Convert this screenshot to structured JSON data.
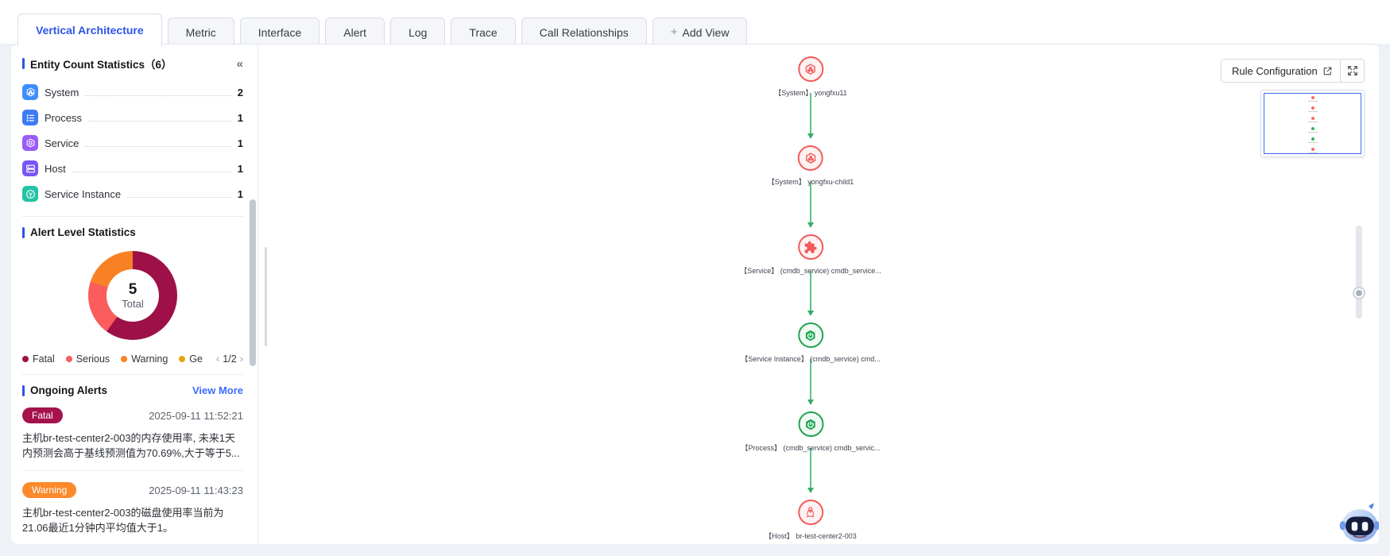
{
  "tabs": {
    "items": [
      {
        "label": "Vertical Architecture",
        "active": true
      },
      {
        "label": "Metric",
        "active": false
      },
      {
        "label": "Interface",
        "active": false
      },
      {
        "label": "Alert",
        "active": false
      },
      {
        "label": "Log",
        "active": false
      },
      {
        "label": "Trace",
        "active": false
      },
      {
        "label": "Call Relationships",
        "active": false
      }
    ],
    "add_view": {
      "plus": "+",
      "label": "Add View"
    }
  },
  "sidebar": {
    "entity_stats": {
      "title": "Entity Count Statistics（6）",
      "collapse_icon": "«",
      "items": [
        {
          "label": "System",
          "count": "2",
          "icon": "system-icon",
          "color": "#3f8dfd"
        },
        {
          "label": "Process",
          "count": "1",
          "icon": "process-icon",
          "color": "#3d7bf5"
        },
        {
          "label": "Service",
          "count": "1",
          "icon": "service-icon",
          "color": "#9a5cf5"
        },
        {
          "label": "Host",
          "count": "1",
          "icon": "host-icon",
          "color": "#7a55f6"
        },
        {
          "label": "Service Instance",
          "count": "1",
          "icon": "service-instance-icon",
          "color": "#23c3a4"
        }
      ]
    },
    "alert_levels": {
      "title": "Alert Level Statistics",
      "total": "5",
      "total_label": "Total",
      "chart": {
        "type": "pie",
        "title": "Alert Level Statistics",
        "segments": [
          {
            "label": "Fatal",
            "value": 3,
            "color": "#9e1148"
          },
          {
            "label": "Serious",
            "value": 1,
            "color": "#fb5c5c"
          },
          {
            "label": "Warning",
            "value": 1,
            "color": "#f98125"
          },
          {
            "label": "Ge",
            "value": 0,
            "color": "#e0a80c"
          }
        ],
        "total": 5
      },
      "pagination": {
        "prev": "‹",
        "label": "1/2",
        "next": "›"
      }
    },
    "ongoing": {
      "title": "Ongoing Alerts",
      "view_more": "View More",
      "alerts": [
        {
          "level": "Fatal",
          "badge_color": "#a5124d",
          "time": "2025-09-11 11:52:21",
          "text": "主机br-test-center2-003的内存使用率, 未来1天内预测会高于基线预测值为70.69%,大于等于5..."
        },
        {
          "level": "Warning",
          "badge_color": "#fa8a2a",
          "time": "2025-09-11 11:43:23",
          "text": "主机br-test-center2-003的磁盘使用率当前为21.06最近1分钟内平均值大于1。"
        }
      ]
    }
  },
  "canvas": {
    "rule_button": "Rule Configuration",
    "nodes": [
      {
        "label": "【System】 yongfxu11",
        "type": "system",
        "status": "red"
      },
      {
        "label": "【System】 yongfxu-child1",
        "type": "system",
        "status": "red"
      },
      {
        "label": "【Service】 (cmdb_service) cmdb_service...",
        "type": "service",
        "status": "red"
      },
      {
        "label": "【Service Instance】 (cmdb_service) cmd...",
        "type": "service-instance",
        "status": "green"
      },
      {
        "label": "【Process】 (cmdb_service) cmdb_servic...",
        "type": "process",
        "status": "green"
      },
      {
        "label": "【Host】 br-test-center2-003",
        "type": "host",
        "status": "red"
      }
    ],
    "edge_color": "#5bc485",
    "node_red": "#f25b5b",
    "node_green": "#21a551"
  }
}
